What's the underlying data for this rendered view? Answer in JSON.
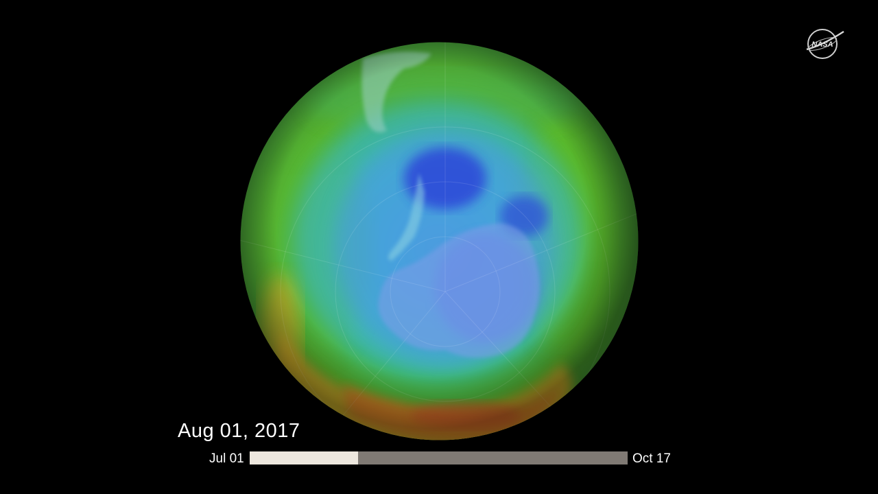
{
  "visualization": {
    "date_label": "Aug 01, 2017",
    "timeline": {
      "start_label": "Jul 01",
      "end_label": "Oct 17",
      "progress": 0.287
    }
  },
  "logo": {
    "name": "NASA",
    "icon": "nasa-meatball-icon"
  },
  "colors": {
    "background": "#000000",
    "progress_fill": "#ede7de",
    "progress_track": "#807a74",
    "ozone_low": "#2a3fd8",
    "ozone_mid": "#3fb0d8",
    "ozone_high": "#e0a72a"
  }
}
